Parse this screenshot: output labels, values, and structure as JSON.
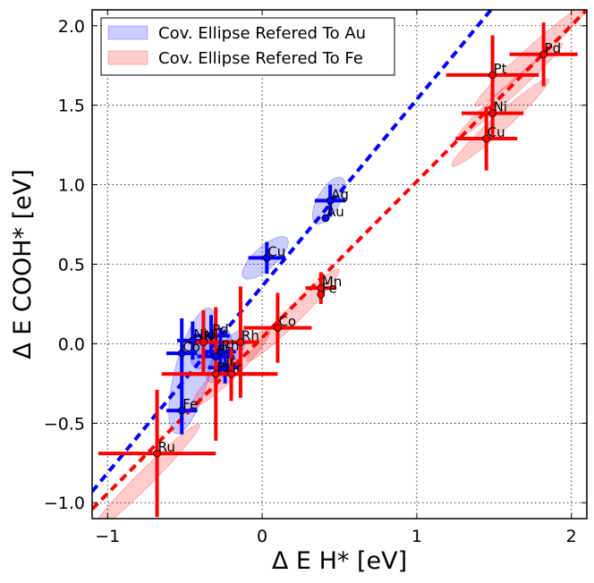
{
  "chart_data": {
    "type": "scatter",
    "xlabel": "Δ E H* [eV]",
    "ylabel": "Δ E COOH* [eV]",
    "xlim": [
      -1.1,
      2.1
    ],
    "ylim": [
      -1.1,
      2.1
    ],
    "xticks": [
      -1,
      0,
      1,
      2
    ],
    "yticks": [
      -1.0,
      -0.5,
      0.0,
      0.5,
      1.0,
      1.5,
      2.0
    ],
    "grid": true,
    "legend_position": "top-left",
    "legend": [
      {
        "label": "Cov. Ellipse Refered To Au",
        "color": "#0000ff"
      },
      {
        "label": "Cov. Ellipse Refered To Fe",
        "color": "#ff0000"
      }
    ],
    "fit_lines": [
      {
        "color": "#0000ff",
        "x": [
          -1.1,
          1.48
        ],
        "y": [
          -0.93,
          2.1
        ]
      },
      {
        "color": "#ff0000",
        "x": [
          -1.1,
          2.1
        ],
        "y": [
          -1.04,
          2.1
        ]
      }
    ],
    "series": [
      {
        "color": "#0000ff",
        "points": [
          {
            "label": "Ag",
            "x": 0.44,
            "y": 0.9,
            "xerr": 0.1,
            "yerr": 0.1
          },
          {
            "label": "Au",
            "x": 0.41,
            "y": 0.79,
            "xerr": 0.0,
            "yerr": 0.0
          },
          {
            "label": "Cu",
            "x": 0.03,
            "y": 0.54,
            "xerr": 0.12,
            "yerr": 0.1
          },
          {
            "label": "Pd",
            "x": -0.33,
            "y": 0.05,
            "xerr": 0.12,
            "yerr": 0.13
          },
          {
            "label": "Ni",
            "x": -0.45,
            "y": 0.02,
            "xerr": 0.1,
            "yerr": 0.12
          },
          {
            "label": "Rh",
            "x": -0.27,
            "y": -0.05,
            "xerr": 0.1,
            "yerr": 0.15
          },
          {
            "label": "Co",
            "x": -0.52,
            "y": -0.06,
            "xerr": 0.1,
            "yerr": 0.22
          },
          {
            "label": "Pt",
            "x": -0.3,
            "y": -0.08,
            "xerr": 0.12,
            "yerr": 0.14
          },
          {
            "label": "Ir",
            "x": -0.24,
            "y": -0.15,
            "xerr": 0.11,
            "yerr": 0.1
          },
          {
            "label": "Fe",
            "x": -0.52,
            "y": -0.42,
            "xerr": 0.1,
            "yerr": 0.15
          }
        ]
      },
      {
        "color": "#ff0000",
        "points": [
          {
            "label": "Pd",
            "x": 1.82,
            "y": 1.82,
            "xerr": 0.22,
            "yerr": 0.2
          },
          {
            "label": "Pt",
            "x": 1.49,
            "y": 1.69,
            "xerr": 0.3,
            "yerr": 0.25
          },
          {
            "label": "Ni",
            "x": 1.49,
            "y": 1.45,
            "xerr": 0.2,
            "yerr": 0.14
          },
          {
            "label": "Cu",
            "x": 1.45,
            "y": 1.29,
            "xerr": 0.2,
            "yerr": 0.2
          },
          {
            "label": "Mn",
            "x": 0.38,
            "y": 0.35,
            "xerr": 0.1,
            "yerr": 0.1
          },
          {
            "label": "Fe",
            "x": 0.38,
            "y": 0.31,
            "xerr": 0.0,
            "yerr": 0.0
          },
          {
            "label": "Co",
            "x": 0.1,
            "y": 0.1,
            "xerr": 0.22,
            "yerr": 0.22
          },
          {
            "label": "Rh",
            "x": -0.14,
            "y": 0.01,
            "xerr": 0.12,
            "yerr": 0.35
          },
          {
            "label": "Ni",
            "x": -0.38,
            "y": 0.01,
            "xerr": 0.1,
            "yerr": 0.2
          },
          {
            "label": "Pt",
            "x": -0.3,
            "y": -0.19,
            "xerr": 0.35,
            "yerr": 0.42
          },
          {
            "label": "Ir",
            "x": -0.2,
            "y": -0.19,
            "xerr": 0.3,
            "yerr": 0.17
          },
          {
            "label": "Ru",
            "x": -0.68,
            "y": -0.69,
            "xerr": 0.38,
            "yerr": 0.4
          }
        ]
      }
    ],
    "ellipses": [
      {
        "color": "#0000ff",
        "cx": 0.43,
        "cy": 0.9,
        "rx": 0.17,
        "ry": 0.07,
        "angle_deg": 60
      },
      {
        "color": "#0000ff",
        "cx": 0.02,
        "cy": 0.54,
        "rx": 0.19,
        "ry": 0.07,
        "angle_deg": 42
      },
      {
        "color": "#0000ff",
        "cx": -0.45,
        "cy": -0.17,
        "rx": 0.42,
        "ry": 0.11,
        "angle_deg": 75
      },
      {
        "color": "#0000ff",
        "cx": -0.33,
        "cy": -0.03,
        "rx": 0.16,
        "ry": 0.09,
        "angle_deg": 45
      },
      {
        "color": "#0000ff",
        "cx": -0.23,
        "cy": -0.08,
        "rx": 0.2,
        "ry": 0.07,
        "angle_deg": 55
      },
      {
        "color": "#ff0000",
        "cx": 1.75,
        "cy": 1.82,
        "rx": 0.5,
        "ry": 0.05,
        "angle_deg": 42
      },
      {
        "color": "#ff0000",
        "cx": 1.6,
        "cy": 1.59,
        "rx": 0.46,
        "ry": 0.04,
        "angle_deg": 42
      },
      {
        "color": "#ff0000",
        "cx": 1.54,
        "cy": 1.39,
        "rx": 0.42,
        "ry": 0.05,
        "angle_deg": 42
      },
      {
        "color": "#ff0000",
        "cx": 0.2,
        "cy": 0.18,
        "rx": 0.42,
        "ry": 0.05,
        "angle_deg": 45
      },
      {
        "color": "#ff0000",
        "cx": -0.2,
        "cy": -0.15,
        "rx": 0.35,
        "ry": 0.06,
        "angle_deg": 45
      },
      {
        "color": "#ff0000",
        "cx": -0.76,
        "cy": -0.85,
        "rx": 0.5,
        "ry": 0.05,
        "angle_deg": 45
      }
    ]
  }
}
